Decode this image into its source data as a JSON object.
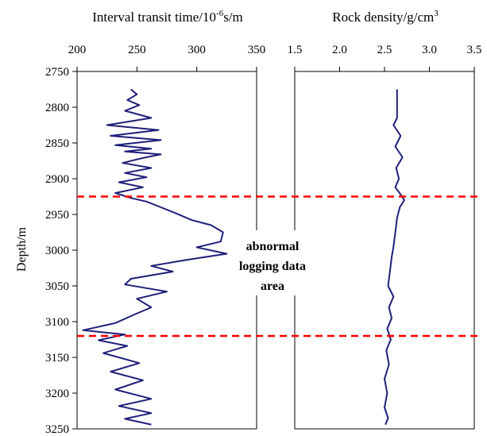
{
  "chart_data": {
    "type": "line",
    "y": {
      "label": "Depth/m",
      "range": [
        2750,
        3250
      ],
      "inverted": true,
      "ticks": [
        2750,
        2800,
        2850,
        2900,
        2950,
        3000,
        3050,
        3100,
        3150,
        3200,
        3250
      ],
      "tick_labels": [
        "2750",
        "2800",
        "2850",
        "2900",
        "2950",
        "3000",
        "3050",
        "3100",
        "3150",
        "3200",
        "3250"
      ]
    },
    "panels": [
      {
        "title_main": "Interval transit time/10",
        "title_sup": "-6",
        "title_tail": "s/m",
        "x_range": [
          200,
          350
        ],
        "x_ticks": [
          200,
          250,
          300,
          350
        ],
        "x_tick_labels": [
          "200",
          "250",
          "300",
          "350"
        ],
        "series": [
          {
            "color": "#1f1f7a",
            "points": [
              [
                245,
                2775
              ],
              [
                250,
                2782
              ],
              [
                242,
                2790
              ],
              [
                252,
                2797
              ],
              [
                240,
                2805
              ],
              [
                262,
                2815
              ],
              [
                225,
                2825
              ],
              [
                268,
                2832
              ],
              [
                228,
                2840
              ],
              [
                270,
                2846
              ],
              [
                232,
                2853
              ],
              [
                262,
                2858
              ],
              [
                240,
                2862
              ],
              [
                270,
                2866
              ],
              [
                255,
                2871
              ],
              [
                238,
                2878
              ],
              [
                262,
                2885
              ],
              [
                240,
                2892
              ],
              [
                258,
                2898
              ],
              [
                235,
                2905
              ],
              [
                255,
                2912
              ],
              [
                232,
                2920
              ],
              [
                245,
                2927
              ],
              [
                258,
                2932
              ],
              [
                270,
                2940
              ],
              [
                282,
                2948
              ],
              [
                296,
                2958
              ],
              [
                312,
                2965
              ],
              [
                322,
                2975
              ],
              [
                320,
                2988
              ],
              [
                300,
                2996
              ],
              [
                325,
                3005
              ],
              [
                290,
                3014
              ],
              [
                262,
                3022
              ],
              [
                280,
                3030
              ],
              [
                245,
                3040
              ],
              [
                240,
                3048
              ],
              [
                275,
                3058
              ],
              [
                250,
                3068
              ],
              [
                262,
                3080
              ],
              [
                248,
                3090
              ],
              [
                232,
                3102
              ],
              [
                205,
                3112
              ],
              [
                240,
                3118
              ],
              [
                218,
                3126
              ],
              [
                242,
                3134
              ],
              [
                222,
                3144
              ],
              [
                252,
                3158
              ],
              [
                228,
                3170
              ],
              [
                255,
                3182
              ],
              [
                232,
                3195
              ],
              [
                262,
                3208
              ],
              [
                235,
                3218
              ],
              [
                262,
                3228
              ],
              [
                240,
                3236
              ],
              [
                262,
                3244
              ]
            ]
          }
        ]
      },
      {
        "title_main": "Rock density/g/cm",
        "title_sup": "3",
        "title_tail": "",
        "x_range": [
          1.5,
          3.5
        ],
        "x_ticks": [
          1.5,
          2.0,
          2.5,
          3.0,
          3.5
        ],
        "x_tick_labels": [
          "1.5",
          "2.0",
          "2.5",
          "3.0",
          "3.5"
        ],
        "series": [
          {
            "color": "#1f1f7a",
            "points": [
              [
                2.64,
                2775
              ],
              [
                2.64,
                2800
              ],
              [
                2.64,
                2815
              ],
              [
                2.6,
                2825
              ],
              [
                2.68,
                2840
              ],
              [
                2.62,
                2855
              ],
              [
                2.7,
                2870
              ],
              [
                2.63,
                2885
              ],
              [
                2.66,
                2900
              ],
              [
                2.62,
                2912
              ],
              [
                2.68,
                2922
              ],
              [
                2.72,
                2930
              ],
              [
                2.67,
                2940
              ],
              [
                2.64,
                2955
              ],
              [
                2.62,
                2975
              ],
              [
                2.6,
                2995
              ],
              [
                2.58,
                3010
              ],
              [
                2.56,
                3030
              ],
              [
                2.54,
                3050
              ],
              [
                2.6,
                3065
              ],
              [
                2.55,
                3080
              ],
              [
                2.58,
                3095
              ],
              [
                2.53,
                3110
              ],
              [
                2.57,
                3125
              ],
              [
                2.52,
                3140
              ],
              [
                2.55,
                3160
              ],
              [
                2.5,
                3180
              ],
              [
                2.53,
                3200
              ],
              [
                2.5,
                3220
              ],
              [
                2.54,
                3235
              ],
              [
                2.51,
                3244
              ]
            ]
          }
        ]
      }
    ],
    "reference_lines": [
      {
        "y": 2925,
        "color": "#ff0000",
        "style": "dashed"
      },
      {
        "y": 3120,
        "color": "#ff0000",
        "style": "dashed"
      }
    ],
    "annotation": [
      "abnormal",
      "logging data",
      "area"
    ],
    "grid": false,
    "legend": "none"
  }
}
